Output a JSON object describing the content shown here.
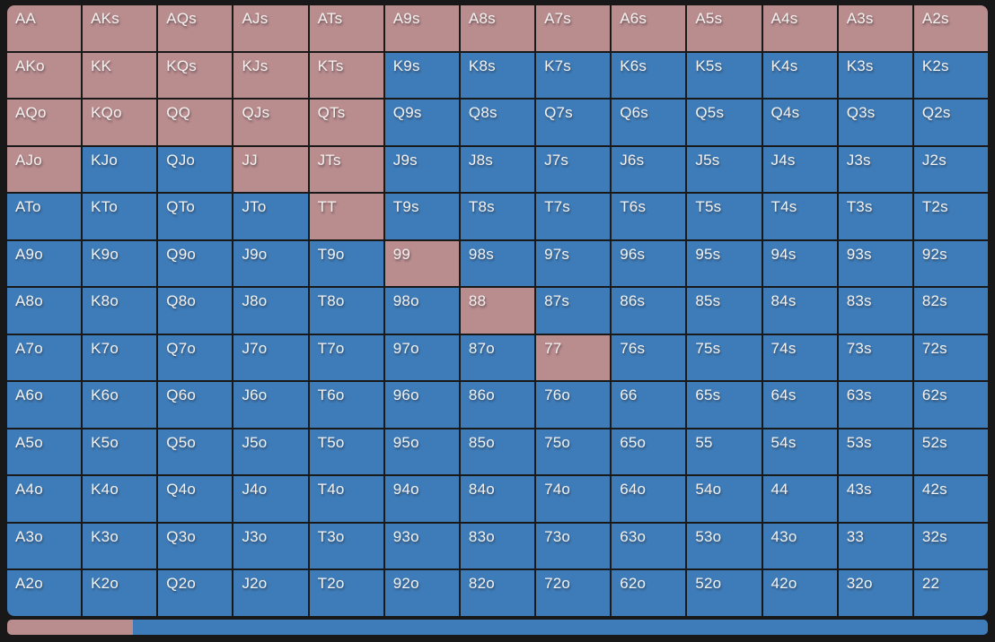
{
  "colors": {
    "raise": "#b98c8e",
    "call": "#3e7cb9",
    "background": "#181818",
    "grid_line": "#191919",
    "text": "#f4f2f0"
  },
  "grid": {
    "rows": [
      {
        "cells": [
          {
            "label": "AA",
            "state": "raise"
          },
          {
            "label": "AKs",
            "state": "raise"
          },
          {
            "label": "AQs",
            "state": "raise"
          },
          {
            "label": "AJs",
            "state": "raise"
          },
          {
            "label": "ATs",
            "state": "raise"
          },
          {
            "label": "A9s",
            "state": "raise"
          },
          {
            "label": "A8s",
            "state": "raise"
          },
          {
            "label": "A7s",
            "state": "raise"
          },
          {
            "label": "A6s",
            "state": "raise"
          },
          {
            "label": "A5s",
            "state": "raise"
          },
          {
            "label": "A4s",
            "state": "raise"
          },
          {
            "label": "A3s",
            "state": "raise"
          },
          {
            "label": "A2s",
            "state": "raise"
          }
        ]
      },
      {
        "cells": [
          {
            "label": "AKo",
            "state": "raise"
          },
          {
            "label": "KK",
            "state": "raise"
          },
          {
            "label": "KQs",
            "state": "raise"
          },
          {
            "label": "KJs",
            "state": "raise"
          },
          {
            "label": "KTs",
            "state": "raise"
          },
          {
            "label": "K9s",
            "state": "call"
          },
          {
            "label": "K8s",
            "state": "call"
          },
          {
            "label": "K7s",
            "state": "call"
          },
          {
            "label": "K6s",
            "state": "call"
          },
          {
            "label": "K5s",
            "state": "call"
          },
          {
            "label": "K4s",
            "state": "call"
          },
          {
            "label": "K3s",
            "state": "call"
          },
          {
            "label": "K2s",
            "state": "call"
          }
        ]
      },
      {
        "cells": [
          {
            "label": "AQo",
            "state": "raise"
          },
          {
            "label": "KQo",
            "state": "raise"
          },
          {
            "label": "QQ",
            "state": "raise"
          },
          {
            "label": "QJs",
            "state": "raise"
          },
          {
            "label": "QTs",
            "state": "raise"
          },
          {
            "label": "Q9s",
            "state": "call"
          },
          {
            "label": "Q8s",
            "state": "call"
          },
          {
            "label": "Q7s",
            "state": "call"
          },
          {
            "label": "Q6s",
            "state": "call"
          },
          {
            "label": "Q5s",
            "state": "call"
          },
          {
            "label": "Q4s",
            "state": "call"
          },
          {
            "label": "Q3s",
            "state": "call"
          },
          {
            "label": "Q2s",
            "state": "call"
          }
        ]
      },
      {
        "cells": [
          {
            "label": "AJo",
            "state": "raise"
          },
          {
            "label": "KJo",
            "state": "call"
          },
          {
            "label": "QJo",
            "state": "call"
          },
          {
            "label": "JJ",
            "state": "raise"
          },
          {
            "label": "JTs",
            "state": "raise"
          },
          {
            "label": "J9s",
            "state": "call"
          },
          {
            "label": "J8s",
            "state": "call"
          },
          {
            "label": "J7s",
            "state": "call"
          },
          {
            "label": "J6s",
            "state": "call"
          },
          {
            "label": "J5s",
            "state": "call"
          },
          {
            "label": "J4s",
            "state": "call"
          },
          {
            "label": "J3s",
            "state": "call"
          },
          {
            "label": "J2s",
            "state": "call"
          }
        ]
      },
      {
        "cells": [
          {
            "label": "ATo",
            "state": "call"
          },
          {
            "label": "KTo",
            "state": "call"
          },
          {
            "label": "QTo",
            "state": "call"
          },
          {
            "label": "JTo",
            "state": "call"
          },
          {
            "label": "TT",
            "state": "raise"
          },
          {
            "label": "T9s",
            "state": "call"
          },
          {
            "label": "T8s",
            "state": "call"
          },
          {
            "label": "T7s",
            "state": "call"
          },
          {
            "label": "T6s",
            "state": "call"
          },
          {
            "label": "T5s",
            "state": "call"
          },
          {
            "label": "T4s",
            "state": "call"
          },
          {
            "label": "T3s",
            "state": "call"
          },
          {
            "label": "T2s",
            "state": "call"
          }
        ]
      },
      {
        "cells": [
          {
            "label": "A9o",
            "state": "call"
          },
          {
            "label": "K9o",
            "state": "call"
          },
          {
            "label": "Q9o",
            "state": "call"
          },
          {
            "label": "J9o",
            "state": "call"
          },
          {
            "label": "T9o",
            "state": "call"
          },
          {
            "label": "99",
            "state": "raise"
          },
          {
            "label": "98s",
            "state": "call"
          },
          {
            "label": "97s",
            "state": "call"
          },
          {
            "label": "96s",
            "state": "call"
          },
          {
            "label": "95s",
            "state": "call"
          },
          {
            "label": "94s",
            "state": "call"
          },
          {
            "label": "93s",
            "state": "call"
          },
          {
            "label": "92s",
            "state": "call"
          }
        ]
      },
      {
        "cells": [
          {
            "label": "A8o",
            "state": "call"
          },
          {
            "label": "K8o",
            "state": "call"
          },
          {
            "label": "Q8o",
            "state": "call"
          },
          {
            "label": "J8o",
            "state": "call"
          },
          {
            "label": "T8o",
            "state": "call"
          },
          {
            "label": "98o",
            "state": "call"
          },
          {
            "label": "88",
            "state": "raise"
          },
          {
            "label": "87s",
            "state": "call"
          },
          {
            "label": "86s",
            "state": "call"
          },
          {
            "label": "85s",
            "state": "call"
          },
          {
            "label": "84s",
            "state": "call"
          },
          {
            "label": "83s",
            "state": "call"
          },
          {
            "label": "82s",
            "state": "call"
          }
        ]
      },
      {
        "cells": [
          {
            "label": "A7o",
            "state": "call"
          },
          {
            "label": "K7o",
            "state": "call"
          },
          {
            "label": "Q7o",
            "state": "call"
          },
          {
            "label": "J7o",
            "state": "call"
          },
          {
            "label": "T7o",
            "state": "call"
          },
          {
            "label": "97o",
            "state": "call"
          },
          {
            "label": "87o",
            "state": "call"
          },
          {
            "label": "77",
            "state": "raise"
          },
          {
            "label": "76s",
            "state": "call"
          },
          {
            "label": "75s",
            "state": "call"
          },
          {
            "label": "74s",
            "state": "call"
          },
          {
            "label": "73s",
            "state": "call"
          },
          {
            "label": "72s",
            "state": "call"
          }
        ]
      },
      {
        "cells": [
          {
            "label": "A6o",
            "state": "call"
          },
          {
            "label": "K6o",
            "state": "call"
          },
          {
            "label": "Q6o",
            "state": "call"
          },
          {
            "label": "J6o",
            "state": "call"
          },
          {
            "label": "T6o",
            "state": "call"
          },
          {
            "label": "96o",
            "state": "call"
          },
          {
            "label": "86o",
            "state": "call"
          },
          {
            "label": "76o",
            "state": "call"
          },
          {
            "label": "66",
            "state": "call"
          },
          {
            "label": "65s",
            "state": "call"
          },
          {
            "label": "64s",
            "state": "call"
          },
          {
            "label": "63s",
            "state": "call"
          },
          {
            "label": "62s",
            "state": "call"
          }
        ]
      },
      {
        "cells": [
          {
            "label": "A5o",
            "state": "call"
          },
          {
            "label": "K5o",
            "state": "call"
          },
          {
            "label": "Q5o",
            "state": "call"
          },
          {
            "label": "J5o",
            "state": "call"
          },
          {
            "label": "T5o",
            "state": "call"
          },
          {
            "label": "95o",
            "state": "call"
          },
          {
            "label": "85o",
            "state": "call"
          },
          {
            "label": "75o",
            "state": "call"
          },
          {
            "label": "65o",
            "state": "call"
          },
          {
            "label": "55",
            "state": "call"
          },
          {
            "label": "54s",
            "state": "call"
          },
          {
            "label": "53s",
            "state": "call"
          },
          {
            "label": "52s",
            "state": "call"
          }
        ]
      },
      {
        "cells": [
          {
            "label": "A4o",
            "state": "call"
          },
          {
            "label": "K4o",
            "state": "call"
          },
          {
            "label": "Q4o",
            "state": "call"
          },
          {
            "label": "J4o",
            "state": "call"
          },
          {
            "label": "T4o",
            "state": "call"
          },
          {
            "label": "94o",
            "state": "call"
          },
          {
            "label": "84o",
            "state": "call"
          },
          {
            "label": "74o",
            "state": "call"
          },
          {
            "label": "64o",
            "state": "call"
          },
          {
            "label": "54o",
            "state": "call"
          },
          {
            "label": "44",
            "state": "call"
          },
          {
            "label": "43s",
            "state": "call"
          },
          {
            "label": "42s",
            "state": "call"
          }
        ]
      },
      {
        "cells": [
          {
            "label": "A3o",
            "state": "call"
          },
          {
            "label": "K3o",
            "state": "call"
          },
          {
            "label": "Q3o",
            "state": "call"
          },
          {
            "label": "J3o",
            "state": "call"
          },
          {
            "label": "T3o",
            "state": "call"
          },
          {
            "label": "93o",
            "state": "call"
          },
          {
            "label": "83o",
            "state": "call"
          },
          {
            "label": "73o",
            "state": "call"
          },
          {
            "label": "63o",
            "state": "call"
          },
          {
            "label": "53o",
            "state": "call"
          },
          {
            "label": "43o",
            "state": "call"
          },
          {
            "label": "33",
            "state": "call"
          },
          {
            "label": "32s",
            "state": "call"
          }
        ]
      },
      {
        "cells": [
          {
            "label": "A2o",
            "state": "call"
          },
          {
            "label": "K2o",
            "state": "call"
          },
          {
            "label": "Q2o",
            "state": "call"
          },
          {
            "label": "J2o",
            "state": "call"
          },
          {
            "label": "T2o",
            "state": "call"
          },
          {
            "label": "92o",
            "state": "call"
          },
          {
            "label": "82o",
            "state": "call"
          },
          {
            "label": "72o",
            "state": "call"
          },
          {
            "label": "62o",
            "state": "call"
          },
          {
            "label": "52o",
            "state": "call"
          },
          {
            "label": "42o",
            "state": "call"
          },
          {
            "label": "32o",
            "state": "call"
          },
          {
            "label": "22",
            "state": "call"
          }
        ]
      }
    ]
  },
  "footer_bar": {
    "raise_percent": 12.8,
    "call_percent": 87.2
  }
}
